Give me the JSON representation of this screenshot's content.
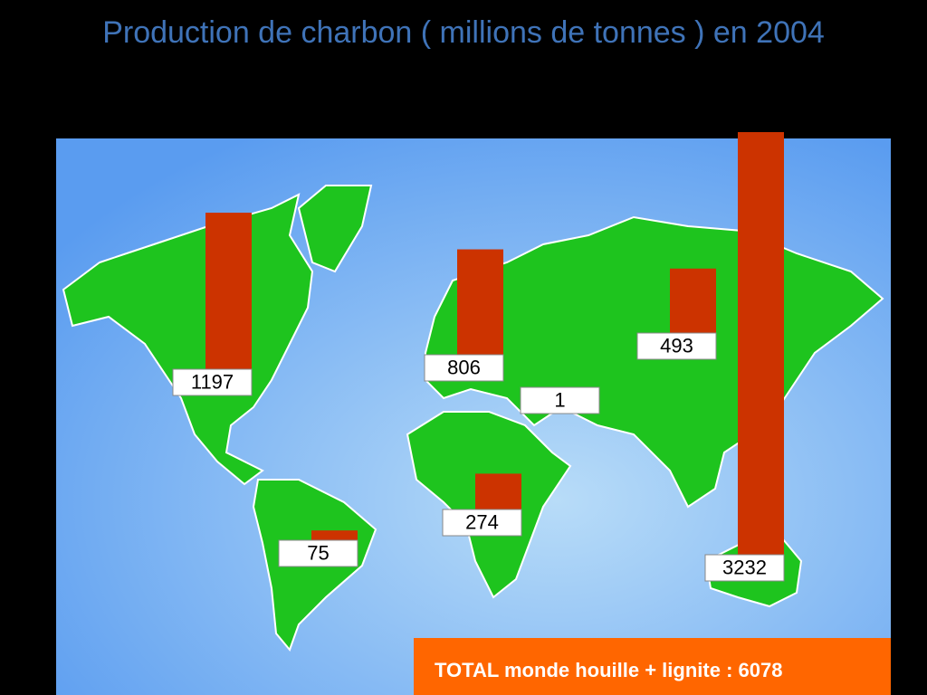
{
  "chart_data": {
    "type": "bar",
    "title": "Production de charbon ( millions de tonnes ) en 2004",
    "values": [
      1197,
      75,
      806,
      274,
      1,
      493,
      3232
    ],
    "color": "#cc3300",
    "total_note": "TOTAL monde houille + lignite : 6078"
  }
}
